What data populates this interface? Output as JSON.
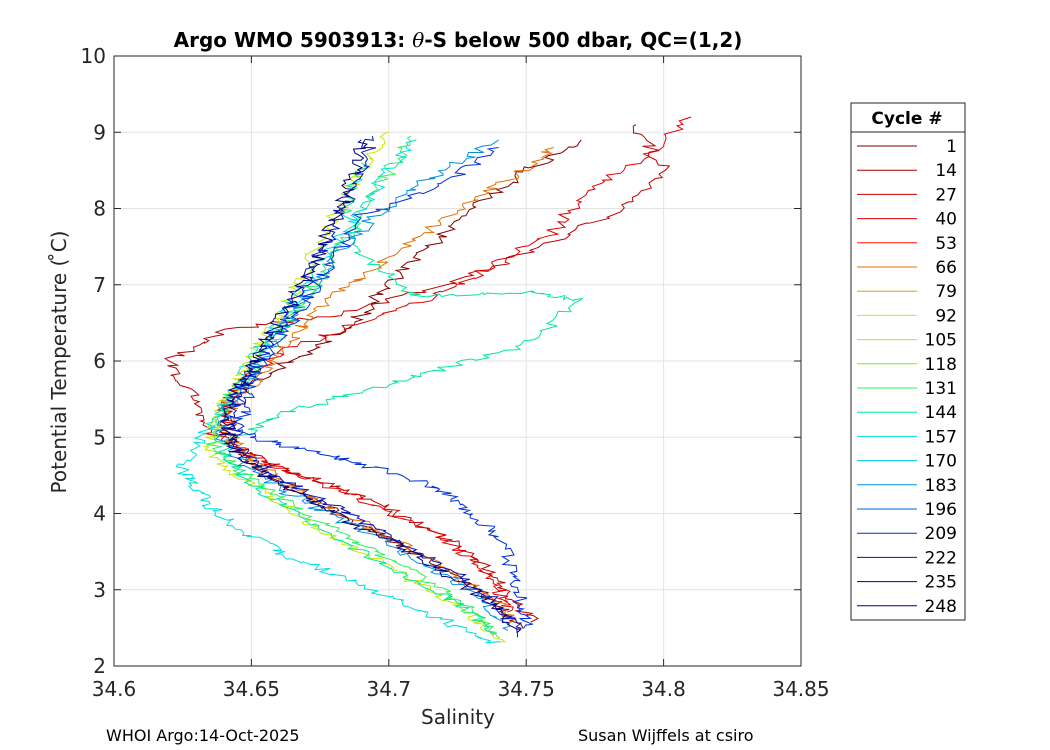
{
  "chart_data": {
    "type": "line",
    "title_main": "Argo WMO 5903913: ",
    "title_theta": "θ",
    "title_rest": "-S below 500 dbar,  QC=(1,2)",
    "xlabel": "Salinity",
    "ylabel": "Potential Temperature ( ̊C)",
    "xlim": [
      34.6,
      34.85
    ],
    "ylim": [
      2,
      10
    ],
    "xticks": [
      34.6,
      34.65,
      34.7,
      34.75,
      34.8,
      34.85
    ],
    "xtick_labels": [
      "34.6",
      "34.65",
      "34.7",
      "34.75",
      "34.8",
      "34.85"
    ],
    "yticks": [
      2,
      3,
      4,
      5,
      6,
      7,
      8,
      9,
      10
    ],
    "ytick_labels": [
      "2",
      "3",
      "4",
      "5",
      "6",
      "7",
      "8",
      "9",
      "10"
    ],
    "grid": true,
    "legend": {
      "title": "Cycle #",
      "placement": "outside-right",
      "entries": [
        {
          "label": "1",
          "color": "#7f0000"
        },
        {
          "label": "14",
          "color": "#9e0000"
        },
        {
          "label": "27",
          "color": "#c00000"
        },
        {
          "label": "40",
          "color": "#e00000"
        },
        {
          "label": "53",
          "color": "#ff1a00"
        },
        {
          "label": "66",
          "color": "#e07000"
        },
        {
          "label": "79",
          "color": "#e0a000"
        },
        {
          "label": "92",
          "color": "#e8e000"
        },
        {
          "label": "105",
          "color": "#c8e800"
        },
        {
          "label": "118",
          "color": "#80f000"
        },
        {
          "label": "131",
          "color": "#30f060"
        },
        {
          "label": "144",
          "color": "#00e8a0"
        },
        {
          "label": "157",
          "color": "#00e0e0"
        },
        {
          "label": "170",
          "color": "#00c0e8"
        },
        {
          "label": "183",
          "color": "#0090e0"
        },
        {
          "label": "196",
          "color": "#0060e8"
        },
        {
          "label": "209",
          "color": "#0030e0"
        },
        {
          "label": "222",
          "color": "#0010c0"
        },
        {
          "label": "235",
          "color": "#000098"
        },
        {
          "label": "248",
          "color": "#00007f"
        }
      ]
    },
    "profile_backbone": {
      "theta": [
        2.4,
        2.8,
        3.2,
        3.6,
        4.0,
        4.3,
        4.6,
        4.9,
        5.2,
        5.5,
        5.8,
        6.2,
        6.6,
        7.0,
        7.5,
        8.0,
        8.5,
        9.0
      ],
      "salinity": [
        34.745,
        34.733,
        34.715,
        34.695,
        34.675,
        34.66,
        34.648,
        34.64,
        34.642,
        34.646,
        34.65,
        34.655,
        34.662,
        34.67,
        34.678,
        34.686,
        34.692,
        34.7
      ]
    },
    "series": [
      {
        "name": "1",
        "color": "#7f0000",
        "s": [
          34.748,
          34.738,
          34.722,
          34.703,
          34.683,
          34.666,
          34.652,
          34.643,
          34.64,
          34.641,
          34.655,
          34.675,
          34.69,
          34.7,
          34.715,
          34.73,
          34.75,
          34.77
        ],
        "theta": [
          2.5,
          2.85,
          3.25,
          3.6,
          3.98,
          4.3,
          4.6,
          4.9,
          5.2,
          5.5,
          5.8,
          6.2,
          6.6,
          7.0,
          7.5,
          8.0,
          8.5,
          8.9
        ]
      },
      {
        "name": "27",
        "color": "#c00000",
        "s": [
          34.752,
          34.745,
          34.735,
          34.72,
          34.7,
          34.68,
          34.66,
          34.645,
          34.636,
          34.63,
          34.62,
          34.64,
          34.68,
          34.72,
          34.75,
          34.78,
          34.8,
          34.79
        ],
        "theta": [
          2.6,
          2.9,
          3.3,
          3.7,
          4.05,
          4.35,
          4.6,
          4.85,
          5.05,
          5.5,
          6.0,
          6.4,
          6.6,
          7.0,
          7.4,
          7.9,
          8.5,
          9.1
        ]
      },
      {
        "name": "40",
        "color": "#e00000",
        "s": [
          34.745,
          34.74,
          34.73,
          34.715,
          34.695,
          34.675,
          34.655,
          34.642,
          34.64,
          34.645,
          34.66,
          34.69,
          34.72,
          34.74,
          34.76,
          34.77,
          34.79,
          34.81
        ],
        "theta": [
          2.7,
          3.0,
          3.4,
          3.8,
          4.1,
          4.4,
          4.65,
          4.95,
          5.3,
          5.7,
          6.1,
          6.5,
          6.9,
          7.3,
          7.7,
          8.2,
          8.6,
          9.2
        ]
      },
      {
        "name": "66",
        "color": "#e07000",
        "s": [
          34.746,
          34.737,
          34.72,
          34.7,
          34.68,
          34.665,
          34.652,
          34.643,
          34.642,
          34.648,
          34.656,
          34.665,
          34.675,
          34.69,
          34.71,
          34.73,
          34.75,
          34.76
        ],
        "theta": [
          2.55,
          2.9,
          3.3,
          3.7,
          4.05,
          4.35,
          4.65,
          4.95,
          5.3,
          5.6,
          5.95,
          6.3,
          6.7,
          7.1,
          7.6,
          8.1,
          8.5,
          8.8
        ]
      },
      {
        "name": "105",
        "color": "#c8e800",
        "s": [
          34.74,
          34.73,
          34.71,
          34.69,
          34.67,
          34.655,
          34.643,
          34.635,
          34.637,
          34.642,
          34.648,
          34.655,
          34.662,
          34.668,
          34.675,
          34.682,
          34.69,
          34.7
        ],
        "theta": [
          2.3,
          2.7,
          3.1,
          3.5,
          3.9,
          4.25,
          4.55,
          4.85,
          5.2,
          5.55,
          5.9,
          6.3,
          6.7,
          7.1,
          7.6,
          8.0,
          8.5,
          9.0
        ]
      },
      {
        "name": "131",
        "color": "#30f060",
        "s": [
          34.742,
          34.73,
          34.712,
          34.692,
          34.672,
          34.656,
          34.644,
          34.636,
          34.638,
          34.644,
          34.652,
          34.66,
          34.668,
          34.676,
          34.684,
          34.692,
          34.7,
          34.708
        ],
        "theta": [
          2.35,
          2.75,
          3.15,
          3.55,
          3.95,
          4.3,
          4.6,
          4.9,
          5.25,
          5.6,
          5.95,
          6.35,
          6.75,
          7.15,
          7.6,
          8.05,
          8.5,
          8.95
        ]
      },
      {
        "name": "144",
        "color": "#00e8a0",
        "s": [
          34.74,
          34.728,
          34.71,
          34.69,
          34.67,
          34.655,
          34.645,
          34.64,
          34.66,
          34.69,
          34.72,
          34.75,
          34.77,
          34.75,
          34.71,
          34.69,
          34.685,
          34.69
        ],
        "theta": [
          2.4,
          2.75,
          3.1,
          3.5,
          3.9,
          4.25,
          4.55,
          4.9,
          5.3,
          5.6,
          5.9,
          6.2,
          6.8,
          6.9,
          6.85,
          7.4,
          8.0,
          8.6
        ]
      },
      {
        "name": "157",
        "color": "#00e0e0",
        "s": [
          34.738,
          34.72,
          34.7,
          34.68,
          34.66,
          34.645,
          34.635,
          34.628,
          34.625,
          34.632,
          34.64,
          34.65,
          34.66,
          34.67,
          34.68,
          34.69,
          34.7,
          34.71
        ],
        "theta": [
          2.3,
          2.6,
          2.9,
          3.2,
          3.5,
          3.8,
          4.1,
          4.4,
          4.6,
          5.0,
          5.5,
          6.0,
          6.5,
          7.0,
          7.5,
          8.0,
          8.5,
          8.9
        ]
      },
      {
        "name": "183",
        "color": "#0090e0",
        "s": [
          34.745,
          34.735,
          34.718,
          34.698,
          34.678,
          34.662,
          34.649,
          34.64,
          34.64,
          34.645,
          34.652,
          34.66,
          34.668,
          34.676,
          34.686,
          34.7,
          34.72,
          34.74
        ],
        "theta": [
          2.45,
          2.85,
          3.25,
          3.65,
          4.0,
          4.3,
          4.6,
          4.9,
          5.25,
          5.6,
          5.95,
          6.35,
          6.75,
          7.15,
          7.6,
          8.05,
          8.5,
          8.9
        ]
      },
      {
        "name": "209",
        "color": "#0030e0",
        "s": [
          34.75,
          34.748,
          34.745,
          34.74,
          34.73,
          34.72,
          34.7,
          34.68,
          34.66,
          34.645,
          34.648,
          34.652,
          34.66,
          34.67,
          34.68,
          34.69,
          34.72,
          34.74
        ],
        "theta": [
          2.5,
          2.9,
          3.3,
          3.7,
          4.0,
          4.3,
          4.55,
          4.75,
          4.9,
          5.1,
          5.5,
          5.9,
          6.3,
          6.8,
          7.3,
          7.9,
          8.3,
          8.8
        ]
      },
      {
        "name": "222",
        "color": "#0010c0",
        "s": [
          34.748,
          34.74,
          34.725,
          34.705,
          34.685,
          34.668,
          34.654,
          34.645,
          34.643,
          34.646,
          34.652,
          34.658,
          34.665,
          34.672,
          34.678,
          34.684,
          34.69,
          34.694
        ],
        "theta": [
          2.4,
          2.8,
          3.2,
          3.6,
          4.0,
          4.3,
          4.6,
          4.9,
          5.25,
          5.6,
          5.95,
          6.35,
          6.75,
          7.15,
          7.6,
          8.05,
          8.5,
          8.95
        ]
      },
      {
        "name": "248",
        "color": "#00007f",
        "s": [
          34.746,
          34.736,
          34.72,
          34.7,
          34.68,
          34.664,
          34.651,
          34.642,
          34.641,
          34.645,
          34.651,
          34.657,
          34.664,
          34.671,
          34.677,
          34.683,
          34.688,
          34.69
        ],
        "theta": [
          2.45,
          2.85,
          3.25,
          3.65,
          4.0,
          4.3,
          4.6,
          4.9,
          5.25,
          5.6,
          5.95,
          6.35,
          6.75,
          7.15,
          7.6,
          8.05,
          8.5,
          8.9
        ]
      }
    ]
  },
  "footer": {
    "left": "WHOI Argo:14-Oct-2025",
    "right": "Susan Wijffels at csiro"
  }
}
